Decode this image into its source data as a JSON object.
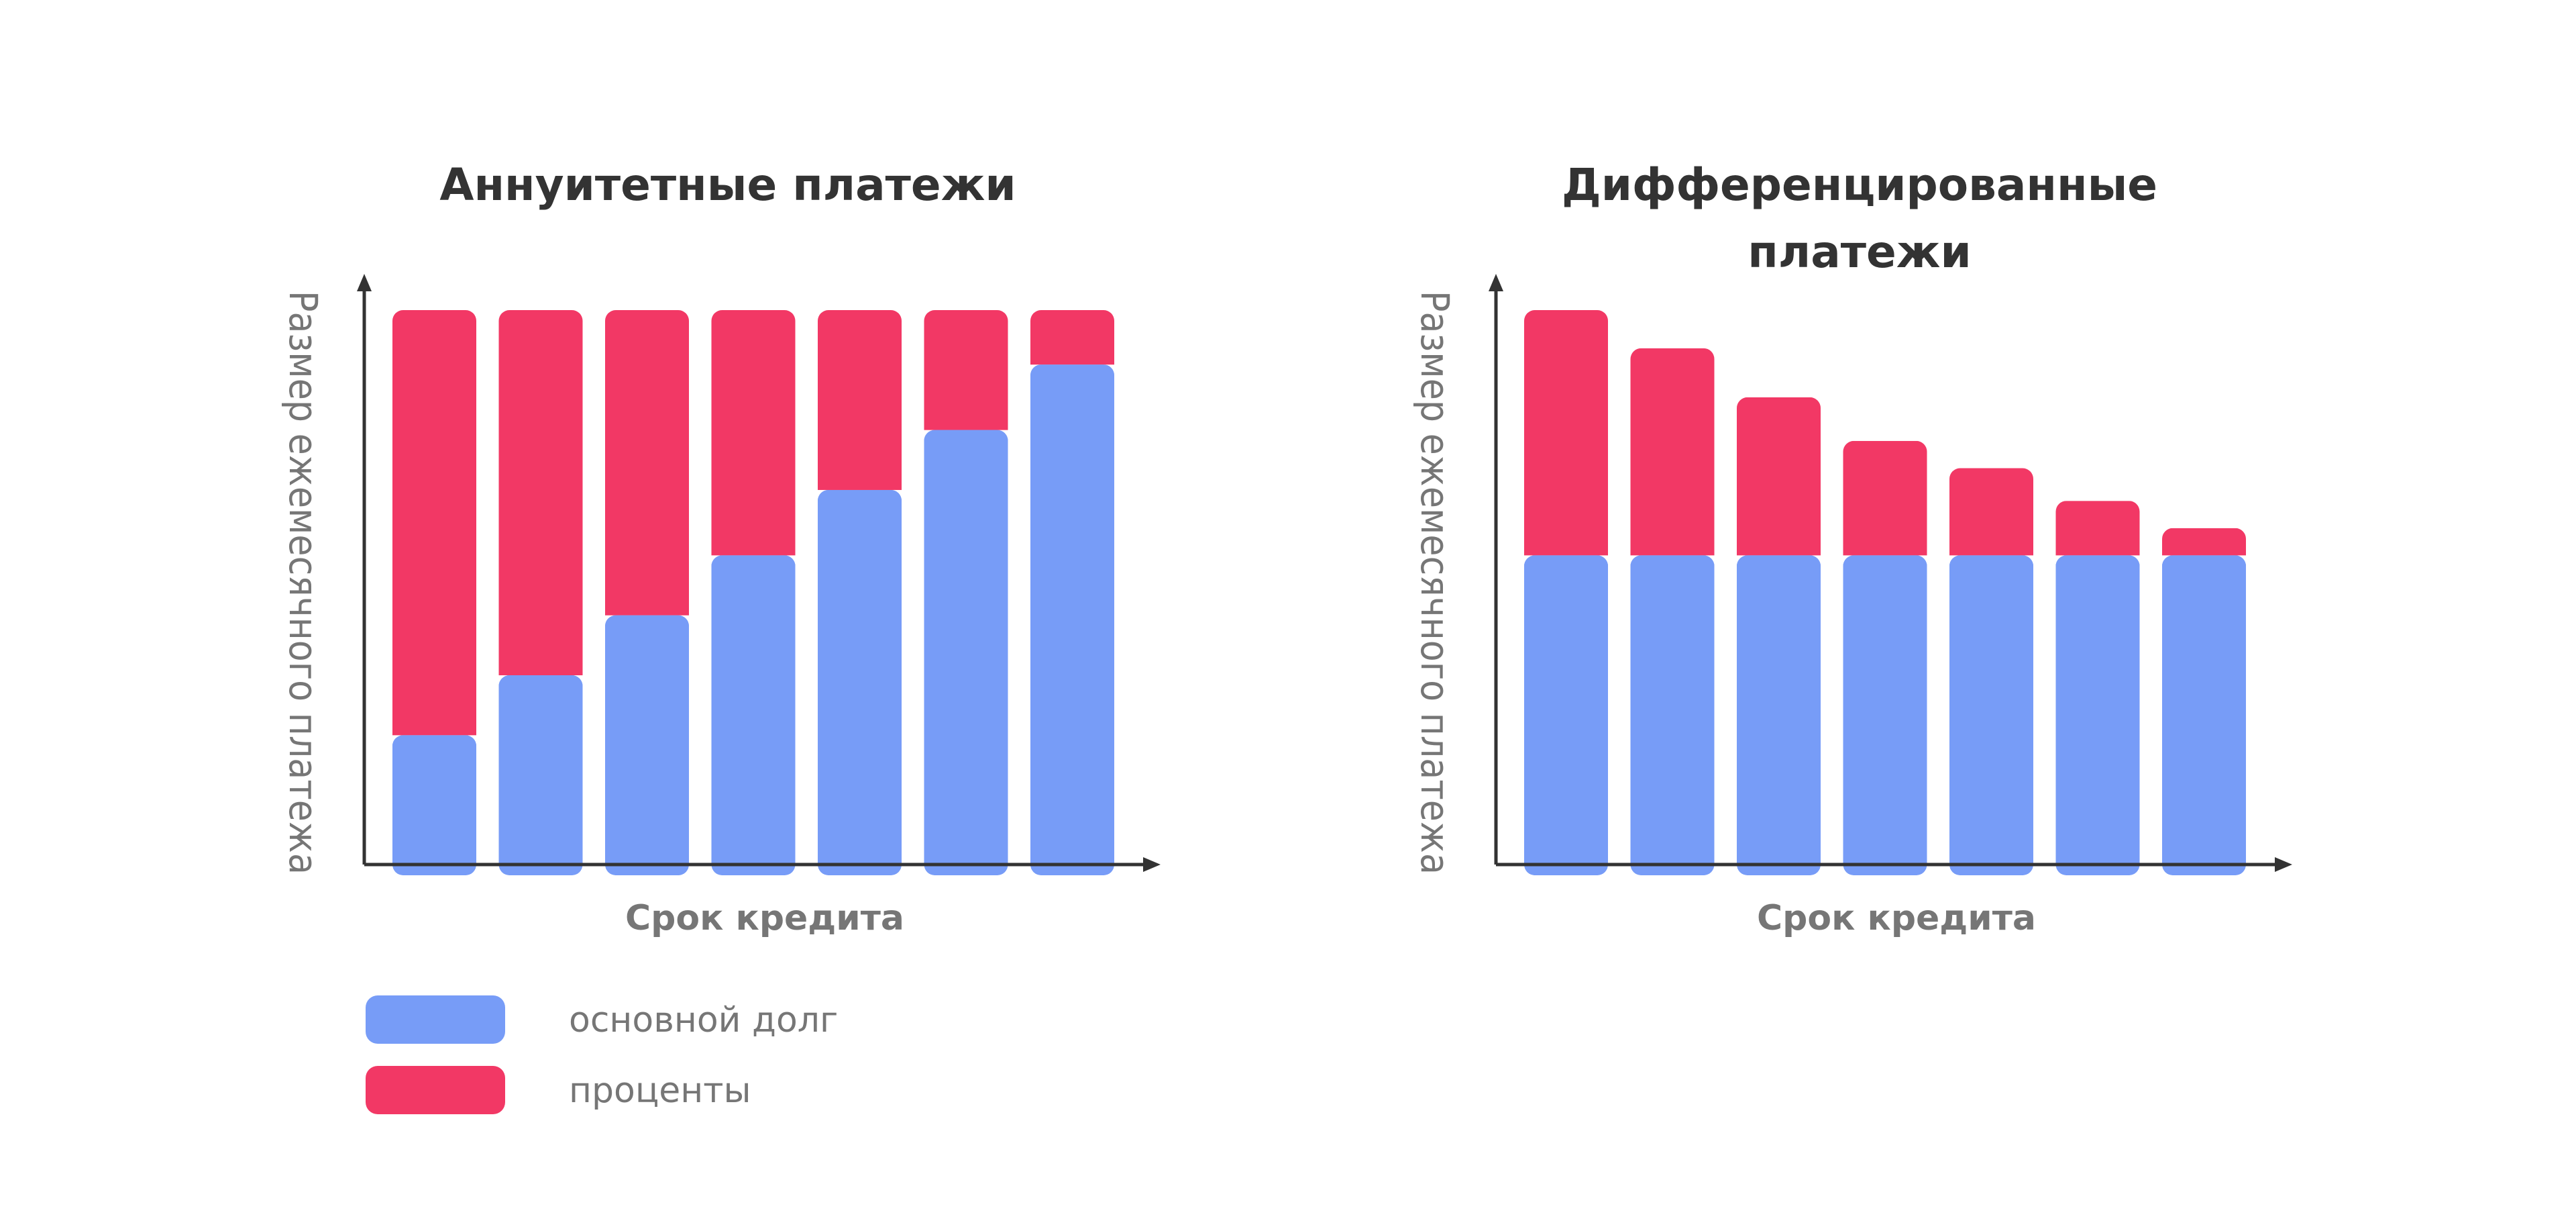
{
  "colors": {
    "principal": "#779cf7",
    "interest": "#f23865",
    "axis": "#333333",
    "text_dark": "#333333",
    "text_gray": "#767676",
    "background": "#ffffff"
  },
  "legend": {
    "items": [
      {
        "label": "основной долг",
        "color": "#779cf7"
      },
      {
        "label": "проценты",
        "color": "#f23865"
      }
    ]
  },
  "chart_data": [
    {
      "type": "bar",
      "stacked": true,
      "title_lines": [
        "Аннуитетные платежи"
      ],
      "xlabel": "Срок кредита",
      "ylabel": "Размер ежемесячного платежа",
      "ylim": [
        0,
        100
      ],
      "categories_count": 7,
      "series": [
        {
          "name": "основной долг",
          "color": "#779cf7",
          "values": [
            22,
            33,
            44,
            55,
            67,
            78,
            90
          ]
        },
        {
          "name": "проценты",
          "color": "#f23865",
          "values": [
            78,
            67,
            56,
            45,
            33,
            22,
            10
          ]
        }
      ]
    },
    {
      "type": "bar",
      "stacked": true,
      "title_lines": [
        "Дифференцированные",
        "платежи"
      ],
      "xlabel": "Срок кредита",
      "ylabel": "Размер ежемесячного платежа",
      "ylim": [
        0,
        100
      ],
      "categories_count": 7,
      "series": [
        {
          "name": "основной долг",
          "color": "#779cf7",
          "values": [
            55,
            55,
            55,
            55,
            55,
            55,
            55
          ]
        },
        {
          "name": "проценты",
          "color": "#f23865",
          "values": [
            45,
            38,
            29,
            21,
            16,
            10,
            5
          ]
        }
      ]
    }
  ]
}
